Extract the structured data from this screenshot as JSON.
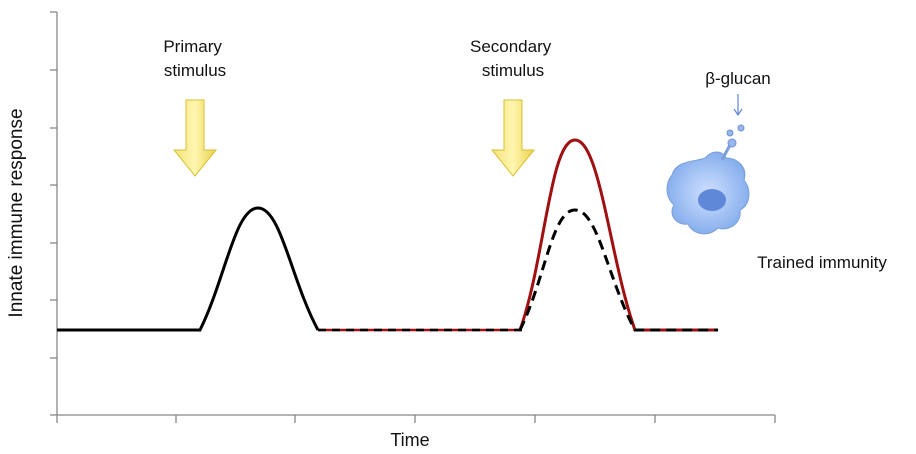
{
  "axes": {
    "y_label": "Innate immune response",
    "x_label": "Time"
  },
  "annotations": {
    "primary": [
      "Primary",
      "stimulus"
    ],
    "secondary": [
      "Secondary",
      "stimulus"
    ],
    "agent": "β-glucan",
    "outcome": "Trained immunity"
  }
}
